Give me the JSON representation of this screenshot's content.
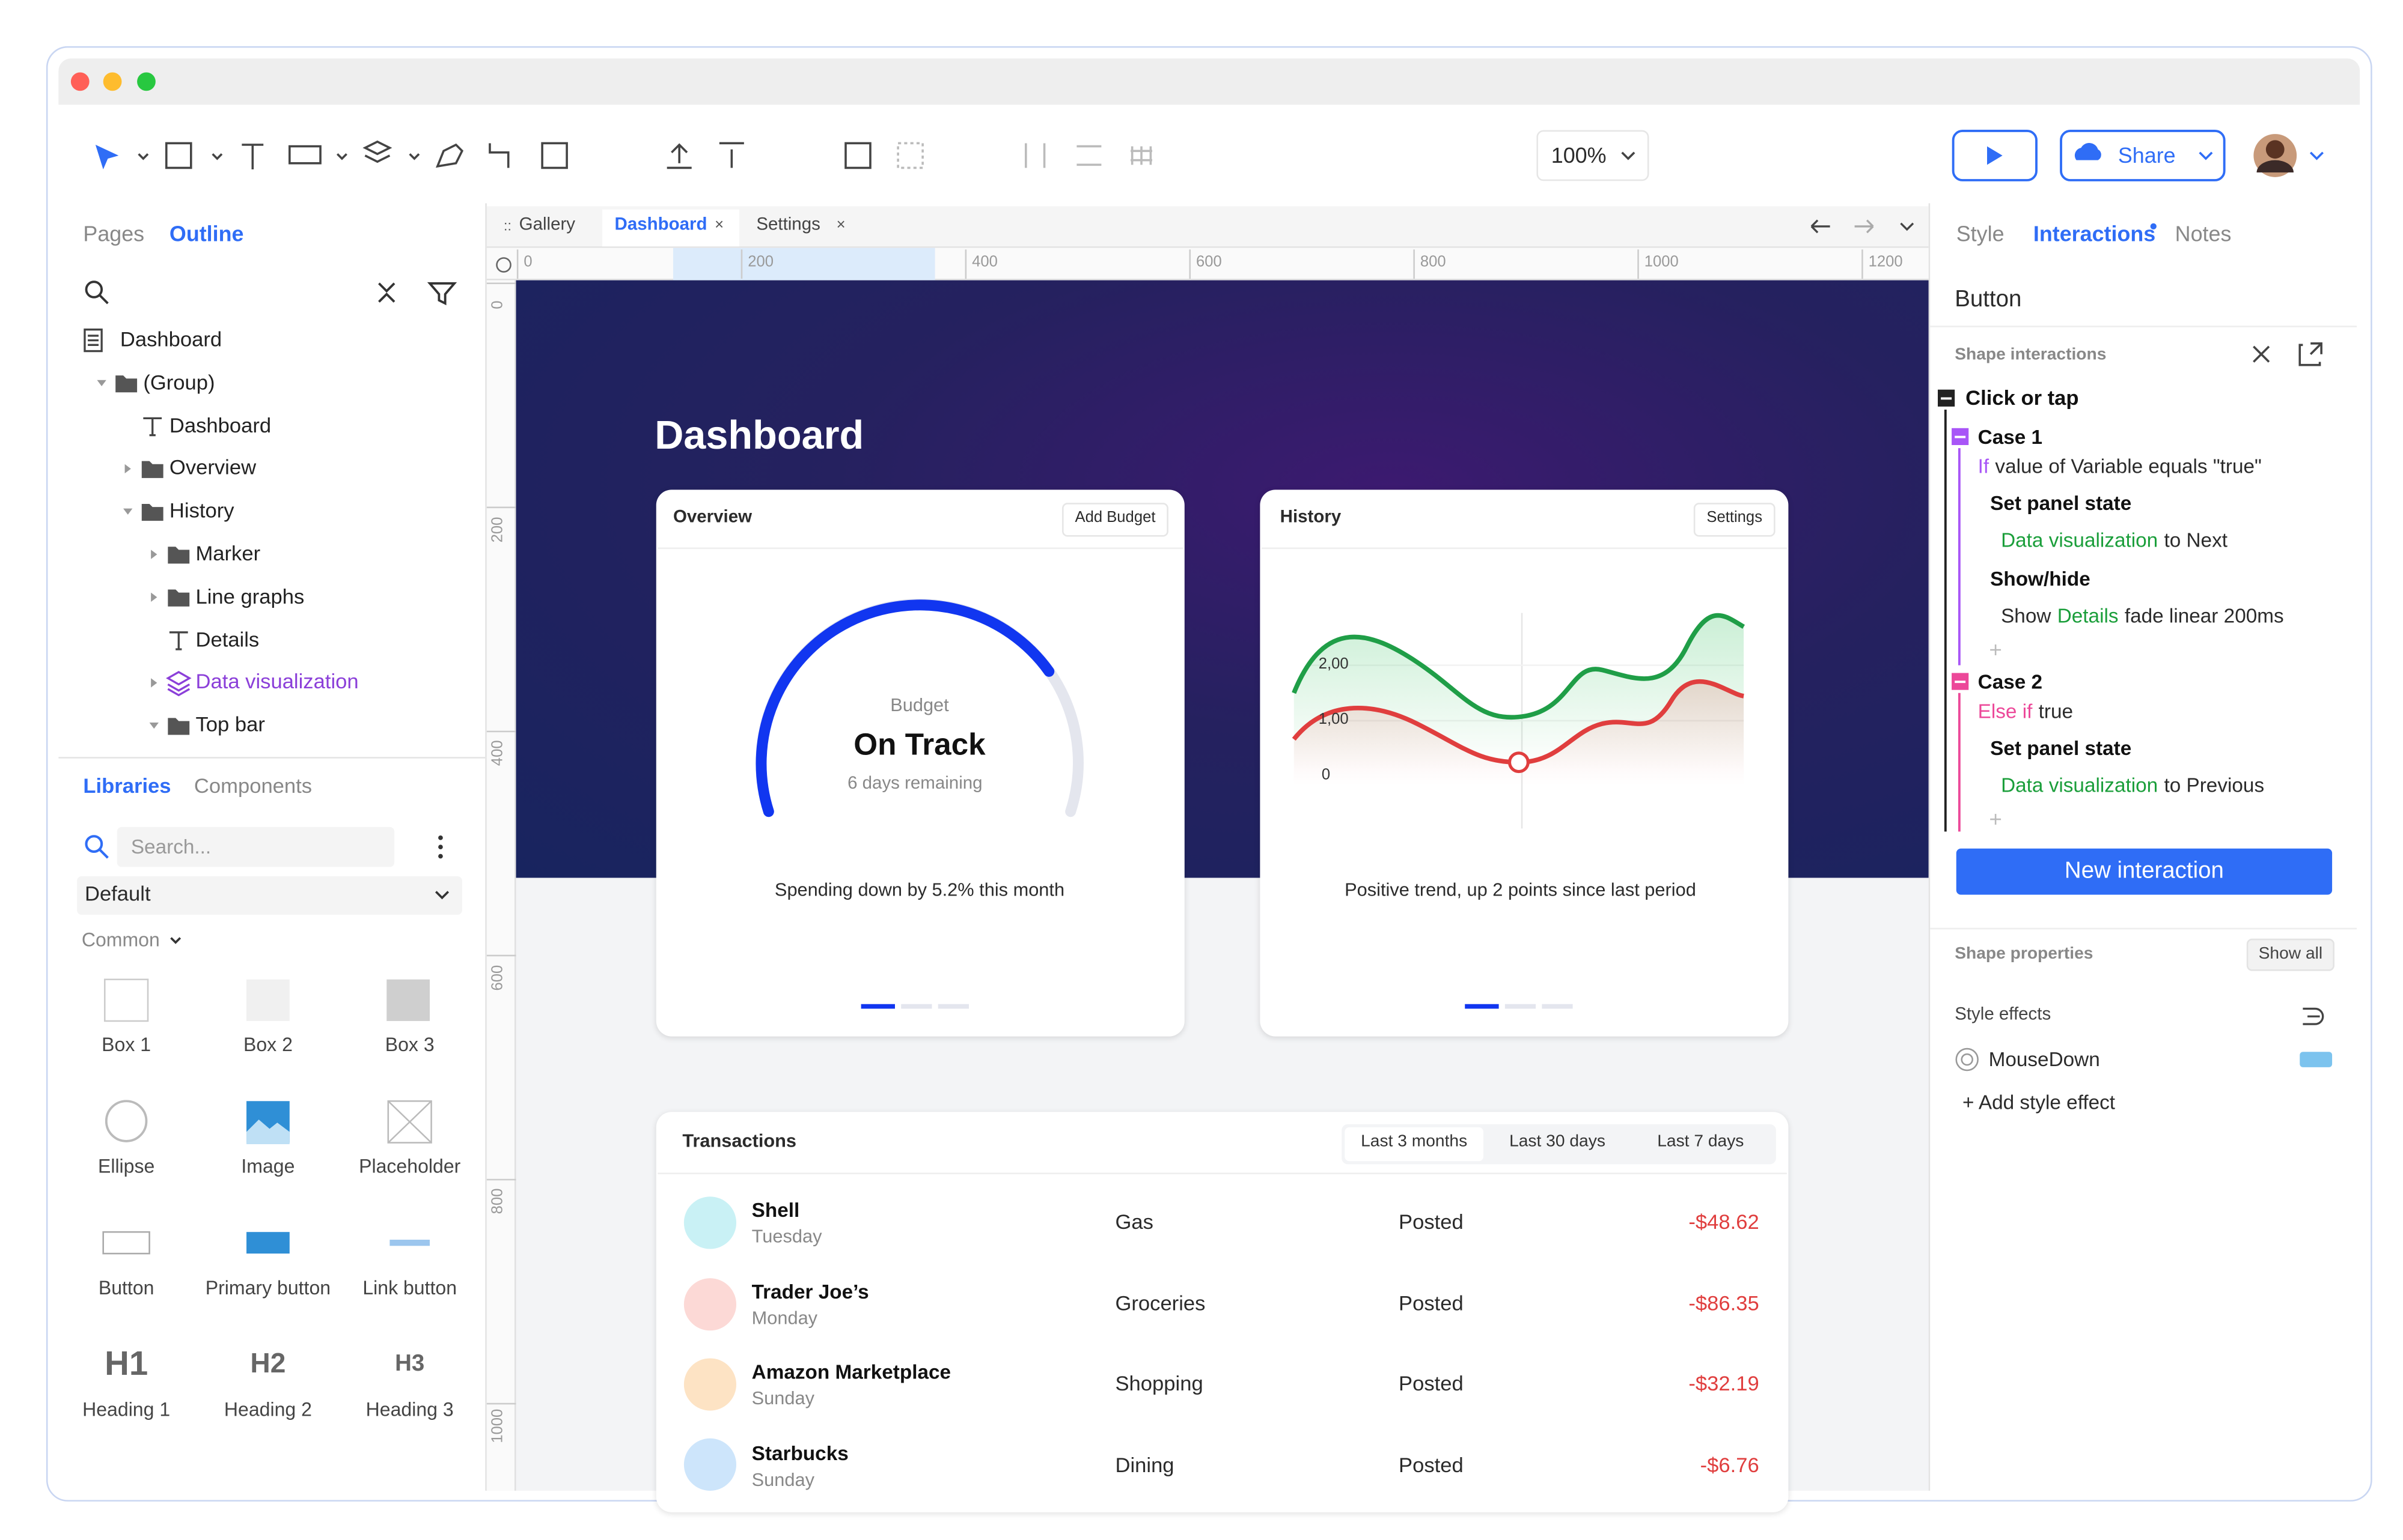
{
  "toolbar": {
    "zoom": "100%",
    "share": "Share"
  },
  "left_panel": {
    "tabs": [
      "Pages",
      "Outline"
    ],
    "outline": [
      "Dashboard",
      "(Group)",
      "Dashboard",
      "Overview",
      "History",
      "Marker",
      "Line graphs",
      "Details",
      "Data visualization",
      "Top bar"
    ],
    "library_tabs": [
      "Libraries",
      "Components"
    ],
    "search_placeholder": "Search...",
    "library": "Default",
    "section": "Common",
    "items": [
      "Box 1",
      "Box 2",
      "Box 3",
      "Ellipse",
      "Image",
      "Placeholder",
      "Button",
      "Primary button",
      "Link button",
      "Heading 1",
      "Heading 2",
      "Heading 3"
    ],
    "heading_glyphs": [
      "H1",
      "H2",
      "H3"
    ]
  },
  "canvas": {
    "tabs": [
      "Gallery",
      "Dashboard",
      "Settings"
    ],
    "ruler_x": [
      0,
      200,
      400,
      600,
      800,
      1000,
      1200
    ],
    "ruler_y": [
      0,
      200,
      400,
      600,
      800,
      1000
    ]
  },
  "dashboard": {
    "title": "Dashboard",
    "overview": {
      "title": "Overview",
      "action": "Add Budget",
      "gauge_label": "Budget",
      "status": "On Track",
      "remaining": "6 days remaining",
      "caption": "Spending down by 5.2% this month"
    },
    "history": {
      "title": "History",
      "action": "Settings",
      "axis_labels": [
        "2,00",
        "1,00",
        "0"
      ],
      "caption": "Positive trend, up 2 points since last period"
    },
    "transactions": {
      "title": "Transactions",
      "filters": [
        "Last 3 months",
        "Last 30 days",
        "Last 7 days"
      ],
      "rows": [
        [
          "Shell",
          "Tuesday",
          "Gas",
          "Posted",
          "-$48.62"
        ],
        [
          "Trader Joe’s",
          "Monday",
          "Groceries",
          "Posted",
          "-$86.35"
        ],
        [
          "Amazon Marketplace",
          "Sunday",
          "Shopping",
          "Posted",
          "-$32.19"
        ],
        [
          "Starbucks",
          "Sunday",
          "Dining",
          "Posted",
          "-$6.76"
        ]
      ]
    }
  },
  "right_panel": {
    "tabs": [
      "Style",
      "Interactions",
      "Notes"
    ],
    "selection": "Button",
    "section": "Shape interactions",
    "trigger": "Click or tap",
    "cases": [
      {
        "name": "Case 1",
        "keyword": "If",
        "condition": "value of Variable equals \"true\"",
        "actions": [
          {
            "title": "Set panel state",
            "target": "Data visualization",
            "detail": "to Next"
          },
          {
            "title": "Show/hide",
            "prefix": "Show",
            "target": "Details",
            "detail": "fade linear 200ms"
          }
        ]
      },
      {
        "name": "Case 2",
        "keyword": "Else if",
        "condition": "true",
        "actions": [
          {
            "title": "Set panel state",
            "target": "Data visualization",
            "detail": "to Previous"
          }
        ]
      }
    ],
    "add": "New interaction",
    "properties": "Shape properties",
    "show_all": "Show all",
    "effects": "Style effects",
    "effect": "MouseDown",
    "add_effect": "+ Add style effect"
  }
}
